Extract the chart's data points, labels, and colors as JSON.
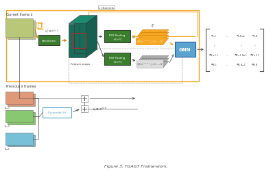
{
  "title": "Figure 3. FGAGT Frame-work.",
  "bg_color": "#ffffff",
  "fig_width": 3.98,
  "fig_height": 2.51,
  "colors": {
    "orange": "#F5A623",
    "dark_green": "#3a7d2c",
    "blue": "#5ba4cf",
    "gray": "#9E9E9E",
    "teal_dark": "#1a6b5a",
    "img1": "#c8d890",
    "img2": "#e08060",
    "img3": "#88c070",
    "img4": "#70b8d0",
    "arrow_dark": "#444444"
  },
  "matrix_rows": [
    [
      "$a_{1,1}$",
      "...",
      "$a_{1,N-1}$",
      "$a_{1,N}$"
    ],
    [
      "$\\vdots$",
      "",
      "$\\vdots$",
      "$\\vdots$"
    ],
    [
      "$a_{M-1,1}$",
      "...",
      "$a_{M-1,N-1}$",
      "$a_{M-1,1}$"
    ],
    [
      "$a_{M,1}$",
      "...",
      "$a_{M,N-1}$",
      "$a_{M,N}$"
    ]
  ]
}
